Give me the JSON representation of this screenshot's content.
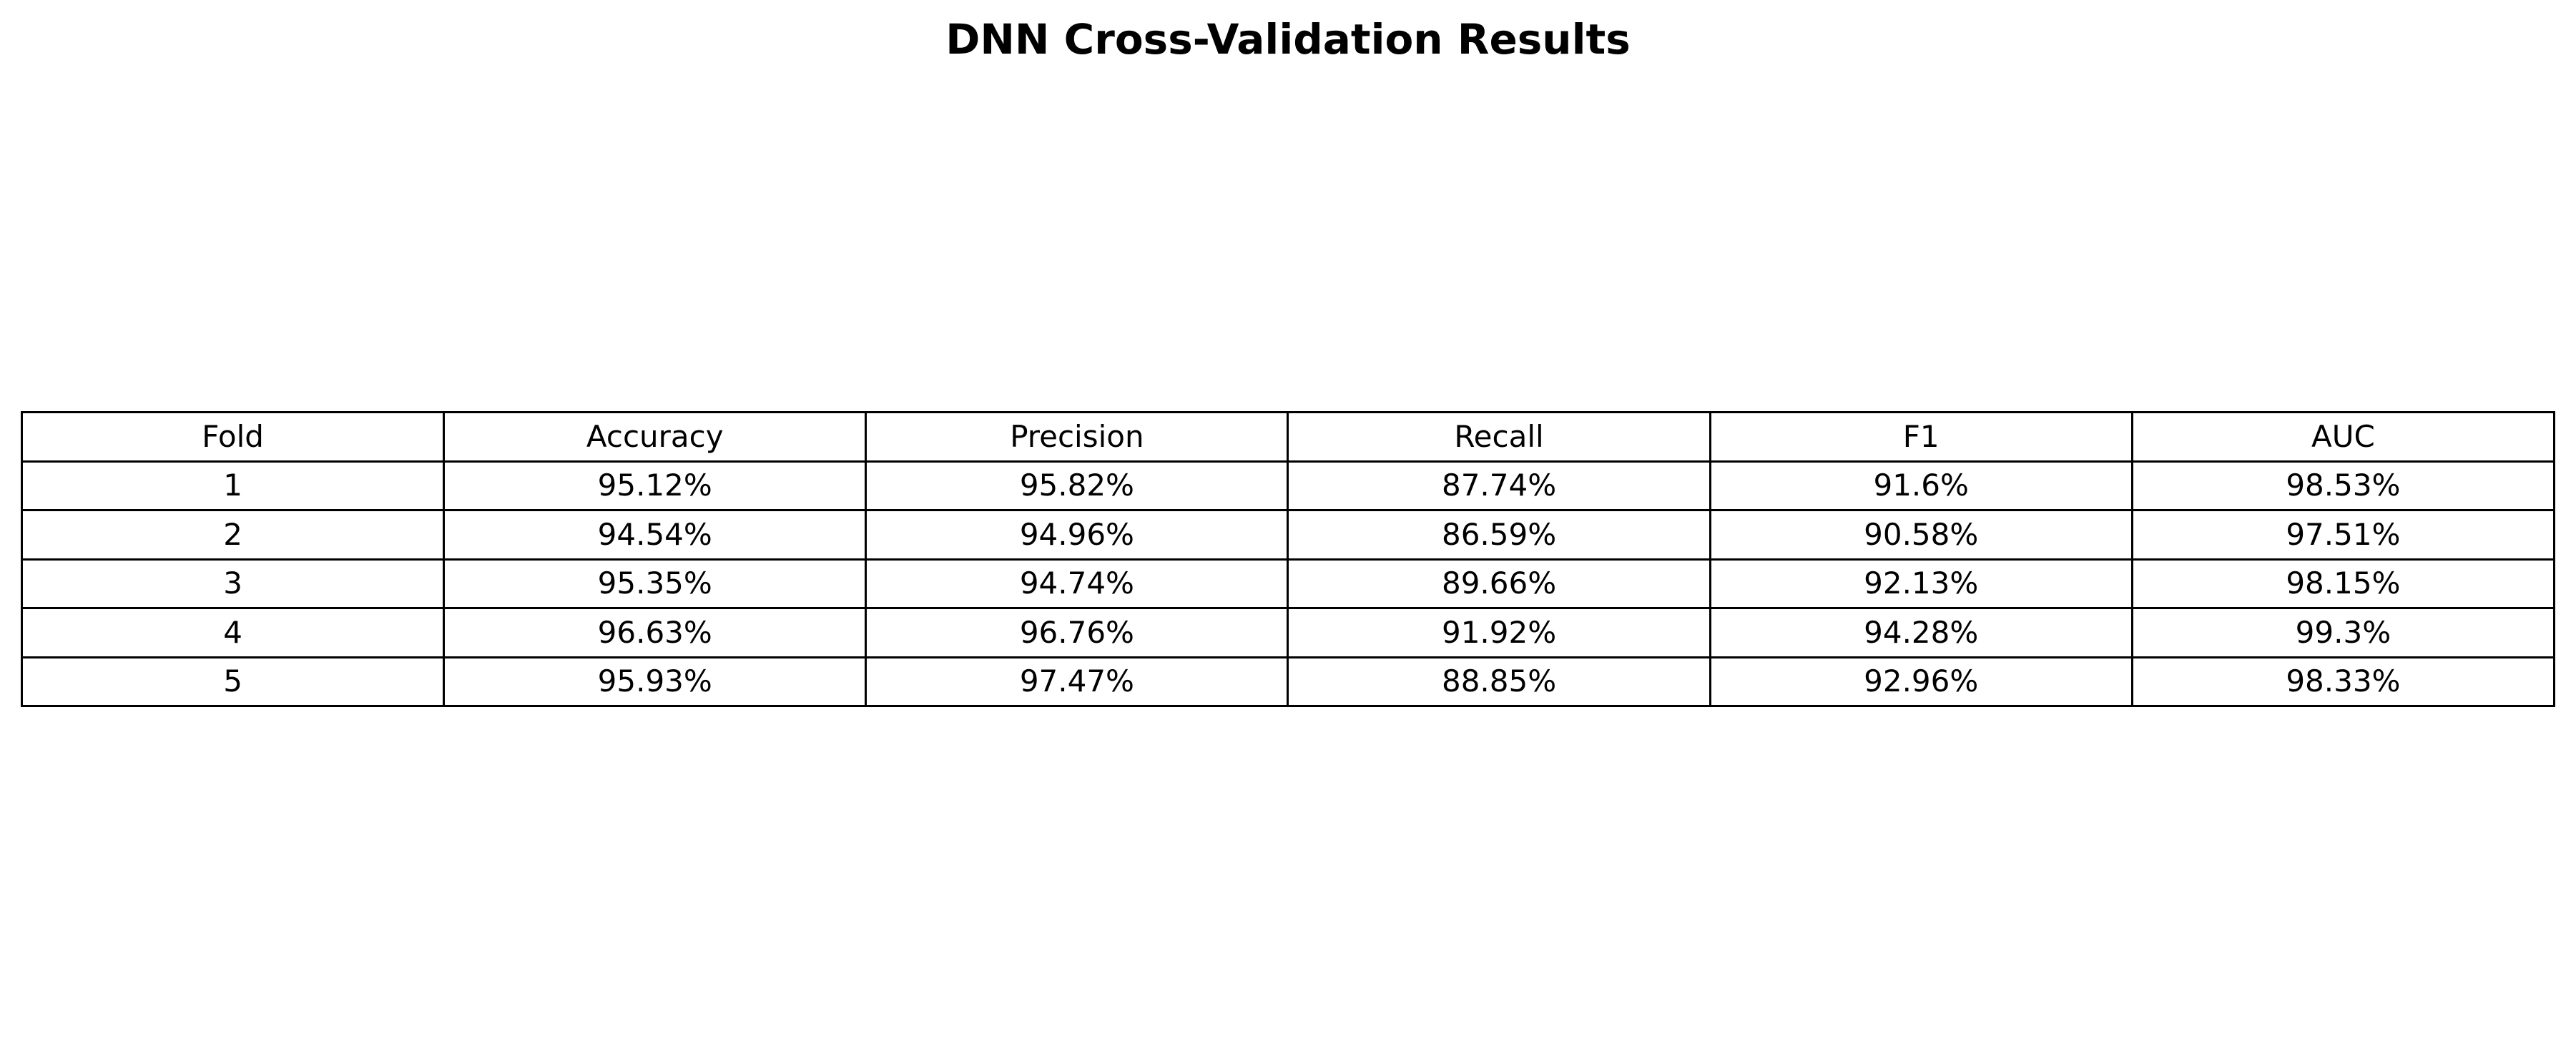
{
  "chart_data": {
    "type": "table",
    "title": "DNN Cross-Validation Results",
    "columns": [
      "Fold",
      "Accuracy",
      "Precision",
      "Recall",
      "F1",
      "AUC"
    ],
    "rows": [
      [
        "1",
        "95.12%",
        "95.82%",
        "87.74%",
        "91.6%",
        "98.53%"
      ],
      [
        "2",
        "94.54%",
        "94.96%",
        "86.59%",
        "90.58%",
        "97.51%"
      ],
      [
        "3",
        "95.35%",
        "94.74%",
        "89.66%",
        "92.13%",
        "98.15%"
      ],
      [
        "4",
        "96.63%",
        "96.76%",
        "91.92%",
        "94.28%",
        "99.3%"
      ],
      [
        "5",
        "95.93%",
        "97.47%",
        "88.85%",
        "92.96%",
        "98.33%"
      ]
    ],
    "colors": {
      "text": "#000000",
      "border": "#000000",
      "background": "#ffffff"
    }
  }
}
